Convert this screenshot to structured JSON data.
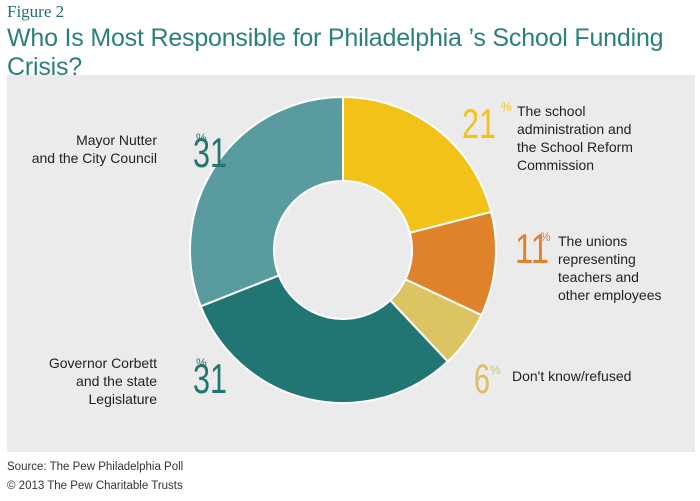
{
  "figure_label": "Figure 2",
  "chart_data": {
    "type": "pie",
    "title": "Who Is Most Responsible for Philadelphia ’s School Funding Crisis?",
    "donut": true,
    "slices": [
      {
        "label": "The school administration and the School Reform Commission",
        "value": 21,
        "display": "21",
        "color": "#f2c219",
        "label_color": "#f2c219",
        "label_lines": [
          "The school",
          "administration and",
          "the School Reform",
          "Commission"
        ]
      },
      {
        "label": "The unions representing teachers and other employees",
        "value": 11,
        "display": "11",
        "color": "#e0822a",
        "label_color": "#e0822a",
        "label_lines": [
          "The unions",
          "representing",
          "teachers and",
          "other employees"
        ]
      },
      {
        "label": "Don't know/refused",
        "value": 6,
        "display": "6",
        "color": "#dcc463",
        "label_color": "#d8c063",
        "label_lines": [
          "Don't know/refused"
        ]
      },
      {
        "label": "Governor Corbett and the state Legislature",
        "value": 31,
        "display": "31",
        "color": "#217673",
        "label_color": "#217673",
        "label_lines": [
          "Governor Corbett",
          "and the state",
          "Legislature"
        ]
      },
      {
        "label": "Mayor Nutter and the City Council",
        "value": 31,
        "display": "31",
        "color": "#5a9ba0",
        "label_color": "#217673",
        "label_lines": [
          "Mayor Nutter",
          "and the City Council"
        ]
      }
    ],
    "percent_symbol": "%",
    "legend": "none"
  },
  "source_lines": [
    "Source: The Pew Philadelphia Poll",
    "© 2013 The Pew Charitable Trusts"
  ]
}
